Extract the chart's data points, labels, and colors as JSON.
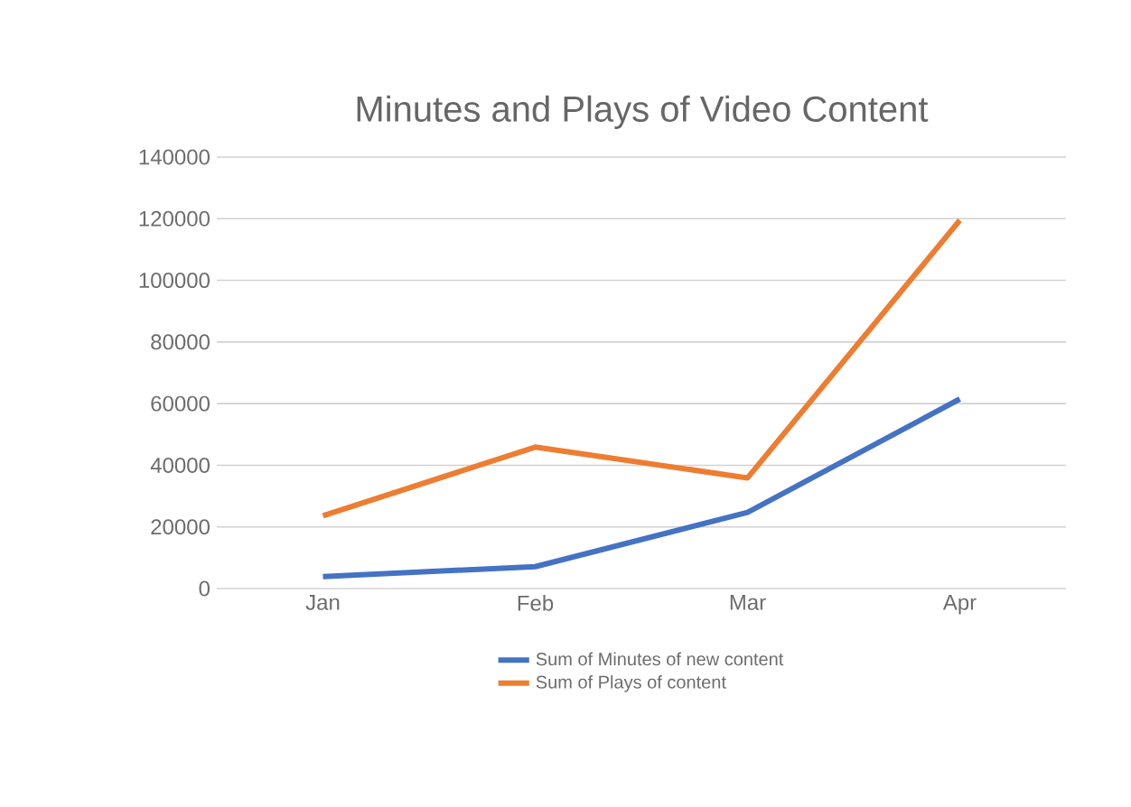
{
  "chart_data": {
    "type": "line",
    "title": "Minutes and Plays of Video Content",
    "categories": [
      "Jan",
      "Feb",
      "Mar",
      "Apr"
    ],
    "series": [
      {
        "name": "Sum of Minutes of new content",
        "color": "#4472c4",
        "values": [
          3900,
          7100,
          24700,
          61500
        ]
      },
      {
        "name": "Sum of Plays of content",
        "color": "#ed7d31",
        "values": [
          23600,
          45900,
          35900,
          119500
        ]
      }
    ],
    "ylim": [
      0,
      140000
    ],
    "yticks": [
      0,
      20000,
      40000,
      60000,
      80000,
      100000,
      120000,
      140000
    ],
    "grid": "y",
    "legend": "bottom",
    "marker": "none",
    "line_style": "solid"
  }
}
